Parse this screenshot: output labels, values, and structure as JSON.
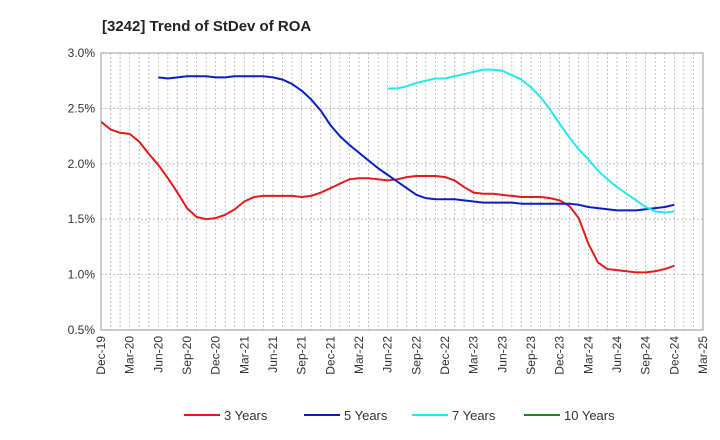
{
  "chart_data": {
    "type": "line",
    "title": "[3242]  Trend of StDev of ROA",
    "xlabel": "",
    "ylabel": "",
    "x_ticks": [
      "Dec-19",
      "Mar-20",
      "Jun-20",
      "Sep-20",
      "Dec-20",
      "Mar-21",
      "Jun-21",
      "Sep-21",
      "Dec-21",
      "Mar-22",
      "Jun-22",
      "Sep-22",
      "Dec-22",
      "Mar-23",
      "Jun-23",
      "Sep-23",
      "Dec-23",
      "Mar-24",
      "Jun-24",
      "Sep-24",
      "Dec-24",
      "Mar-25"
    ],
    "y_ticks": [
      "0.5%",
      "1.0%",
      "1.5%",
      "2.0%",
      "2.5%",
      "3.0%"
    ],
    "ylim": [
      0.5,
      3.0
    ],
    "grid": true,
    "legend_position": "bottom",
    "series": [
      {
        "name": "3 Years",
        "color": "#e31a1c",
        "points": [
          [
            "Dec-19",
            2.38
          ],
          [
            "Jan-20",
            2.31
          ],
          [
            "Feb-20",
            2.28
          ],
          [
            "Mar-20",
            2.27
          ],
          [
            "Apr-20",
            2.2
          ],
          [
            "May-20",
            2.09
          ],
          [
            "Jun-20",
            1.99
          ],
          [
            "Jul-20",
            1.87
          ],
          [
            "Aug-20",
            1.74
          ],
          [
            "Sep-20",
            1.6
          ],
          [
            "Oct-20",
            1.52
          ],
          [
            "Nov-20",
            1.5
          ],
          [
            "Dec-20",
            1.51
          ],
          [
            "Jan-21",
            1.54
          ],
          [
            "Feb-21",
            1.59
          ],
          [
            "Mar-21",
            1.66
          ],
          [
            "Apr-21",
            1.7
          ],
          [
            "May-21",
            1.71
          ],
          [
            "Jun-21",
            1.71
          ],
          [
            "Jul-21",
            1.71
          ],
          [
            "Aug-21",
            1.71
          ],
          [
            "Sep-21",
            1.7
          ],
          [
            "Oct-21",
            1.71
          ],
          [
            "Nov-21",
            1.74
          ],
          [
            "Dec-21",
            1.78
          ],
          [
            "Jan-22",
            1.82
          ],
          [
            "Feb-22",
            1.86
          ],
          [
            "Mar-22",
            1.87
          ],
          [
            "Apr-22",
            1.87
          ],
          [
            "May-22",
            1.86
          ],
          [
            "Jun-22",
            1.85
          ],
          [
            "Jul-22",
            1.86
          ],
          [
            "Aug-22",
            1.88
          ],
          [
            "Sep-22",
            1.89
          ],
          [
            "Oct-22",
            1.89
          ],
          [
            "Nov-22",
            1.89
          ],
          [
            "Dec-22",
            1.88
          ],
          [
            "Jan-23",
            1.85
          ],
          [
            "Feb-23",
            1.79
          ],
          [
            "Mar-23",
            1.74
          ],
          [
            "Apr-23",
            1.73
          ],
          [
            "May-23",
            1.73
          ],
          [
            "Jun-23",
            1.72
          ],
          [
            "Jul-23",
            1.71
          ],
          [
            "Aug-23",
            1.7
          ],
          [
            "Sep-23",
            1.7
          ],
          [
            "Oct-23",
            1.7
          ],
          [
            "Nov-23",
            1.69
          ],
          [
            "Dec-23",
            1.67
          ],
          [
            "Jan-24",
            1.62
          ],
          [
            "Feb-24",
            1.51
          ],
          [
            "Mar-24",
            1.28
          ],
          [
            "Apr-24",
            1.11
          ],
          [
            "May-24",
            1.05
          ],
          [
            "Jun-24",
            1.04
          ],
          [
            "Jul-24",
            1.03
          ],
          [
            "Aug-24",
            1.02
          ],
          [
            "Sep-24",
            1.02
          ],
          [
            "Oct-24",
            1.03
          ],
          [
            "Nov-24",
            1.05
          ],
          [
            "Dec-24",
            1.08
          ]
        ]
      },
      {
        "name": "5 Years",
        "color": "#0a1fbf",
        "points": [
          [
            "Jun-20",
            2.78
          ],
          [
            "Jul-20",
            2.77
          ],
          [
            "Aug-20",
            2.78
          ],
          [
            "Sep-20",
            2.79
          ],
          [
            "Oct-20",
            2.79
          ],
          [
            "Nov-20",
            2.79
          ],
          [
            "Dec-20",
            2.78
          ],
          [
            "Jan-21",
            2.78
          ],
          [
            "Feb-21",
            2.79
          ],
          [
            "Mar-21",
            2.79
          ],
          [
            "Apr-21",
            2.79
          ],
          [
            "May-21",
            2.79
          ],
          [
            "Jun-21",
            2.78
          ],
          [
            "Jul-21",
            2.76
          ],
          [
            "Aug-21",
            2.72
          ],
          [
            "Sep-21",
            2.66
          ],
          [
            "Oct-21",
            2.58
          ],
          [
            "Nov-21",
            2.48
          ],
          [
            "Dec-21",
            2.35
          ],
          [
            "Jan-22",
            2.25
          ],
          [
            "Feb-22",
            2.17
          ],
          [
            "Mar-22",
            2.1
          ],
          [
            "Apr-22",
            2.03
          ],
          [
            "May-22",
            1.96
          ],
          [
            "Jun-22",
            1.9
          ],
          [
            "Jul-22",
            1.84
          ],
          [
            "Aug-22",
            1.78
          ],
          [
            "Sep-22",
            1.72
          ],
          [
            "Oct-22",
            1.69
          ],
          [
            "Nov-22",
            1.68
          ],
          [
            "Dec-22",
            1.68
          ],
          [
            "Jan-23",
            1.68
          ],
          [
            "Feb-23",
            1.67
          ],
          [
            "Mar-23",
            1.66
          ],
          [
            "Apr-23",
            1.65
          ],
          [
            "May-23",
            1.65
          ],
          [
            "Jun-23",
            1.65
          ],
          [
            "Jul-23",
            1.65
          ],
          [
            "Aug-23",
            1.64
          ],
          [
            "Sep-23",
            1.64
          ],
          [
            "Oct-23",
            1.64
          ],
          [
            "Nov-23",
            1.64
          ],
          [
            "Dec-23",
            1.64
          ],
          [
            "Jan-24",
            1.64
          ],
          [
            "Feb-24",
            1.63
          ],
          [
            "Mar-24",
            1.61
          ],
          [
            "Apr-24",
            1.6
          ],
          [
            "May-24",
            1.59
          ],
          [
            "Jun-24",
            1.58
          ],
          [
            "Jul-24",
            1.58
          ],
          [
            "Aug-24",
            1.58
          ],
          [
            "Sep-24",
            1.59
          ],
          [
            "Oct-24",
            1.6
          ],
          [
            "Nov-24",
            1.61
          ],
          [
            "Dec-24",
            1.63
          ]
        ]
      },
      {
        "name": "7 Years",
        "color": "#22e8ee",
        "points": [
          [
            "Jun-22",
            2.68
          ],
          [
            "Jul-22",
            2.68
          ],
          [
            "Aug-22",
            2.7
          ],
          [
            "Sep-22",
            2.73
          ],
          [
            "Oct-22",
            2.75
          ],
          [
            "Nov-22",
            2.77
          ],
          [
            "Dec-22",
            2.77
          ],
          [
            "Jan-23",
            2.79
          ],
          [
            "Feb-23",
            2.81
          ],
          [
            "Mar-23",
            2.83
          ],
          [
            "Apr-23",
            2.85
          ],
          [
            "May-23",
            2.85
          ],
          [
            "Jun-23",
            2.84
          ],
          [
            "Jul-23",
            2.8
          ],
          [
            "Aug-23",
            2.76
          ],
          [
            "Sep-23",
            2.69
          ],
          [
            "Oct-23",
            2.6
          ],
          [
            "Nov-23",
            2.49
          ],
          [
            "Dec-23",
            2.36
          ],
          [
            "Jan-24",
            2.24
          ],
          [
            "Feb-24",
            2.13
          ],
          [
            "Mar-24",
            2.04
          ],
          [
            "Apr-24",
            1.94
          ],
          [
            "May-24",
            1.86
          ],
          [
            "Jun-24",
            1.79
          ],
          [
            "Jul-24",
            1.73
          ],
          [
            "Aug-24",
            1.67
          ],
          [
            "Sep-24",
            1.61
          ],
          [
            "Oct-24",
            1.57
          ],
          [
            "Nov-24",
            1.56
          ],
          [
            "Dec-24",
            1.57
          ]
        ]
      },
      {
        "name": "10 Years",
        "color": "#1a8a1a",
        "points": []
      }
    ]
  }
}
